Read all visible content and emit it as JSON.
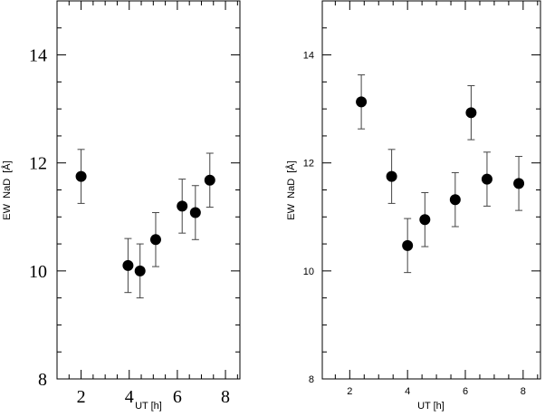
{
  "chart_data": [
    {
      "type": "scatter",
      "title": "",
      "xlabel": "UT [h]",
      "ylabel": "EW  NaD  [Å]",
      "xlim": [
        1,
        8.6
      ],
      "ylim": [
        8,
        15
      ],
      "x_ticks": [
        "2",
        "4",
        "6",
        "8"
      ],
      "y_ticks": [
        "8",
        "10",
        "12",
        "14"
      ],
      "grid": false,
      "points": [
        {
          "x": 2.0,
          "y": 11.75,
          "err": 0.5
        },
        {
          "x": 3.95,
          "y": 10.1,
          "err": 0.5
        },
        {
          "x": 4.45,
          "y": 10.0,
          "err": 0.5
        },
        {
          "x": 5.1,
          "y": 10.58,
          "err": 0.5
        },
        {
          "x": 6.2,
          "y": 11.2,
          "err": 0.5
        },
        {
          "x": 6.75,
          "y": 11.08,
          "err": 0.5
        },
        {
          "x": 7.35,
          "y": 11.68,
          "err": 0.5
        }
      ]
    },
    {
      "type": "scatter",
      "title": "",
      "xlabel": "UT [h]",
      "ylabel": "EW  NaD  [Å]",
      "xlim": [
        1.05,
        8.6
      ],
      "ylim": [
        8,
        15
      ],
      "x_ticks": [
        "2",
        "4",
        "6",
        "8"
      ],
      "y_ticks": [
        "8",
        "10",
        "12",
        "14"
      ],
      "grid": false,
      "points": [
        {
          "x": 2.4,
          "y": 13.13,
          "err": 0.5
        },
        {
          "x": 3.45,
          "y": 11.75,
          "err": 0.5
        },
        {
          "x": 4.0,
          "y": 10.47,
          "err": 0.5
        },
        {
          "x": 4.6,
          "y": 10.95,
          "err": 0.5
        },
        {
          "x": 5.65,
          "y": 11.32,
          "err": 0.5
        },
        {
          "x": 6.2,
          "y": 12.93,
          "err": 0.5
        },
        {
          "x": 6.75,
          "y": 11.7,
          "err": 0.5
        },
        {
          "x": 7.85,
          "y": 11.62,
          "err": 0.5
        }
      ]
    }
  ]
}
